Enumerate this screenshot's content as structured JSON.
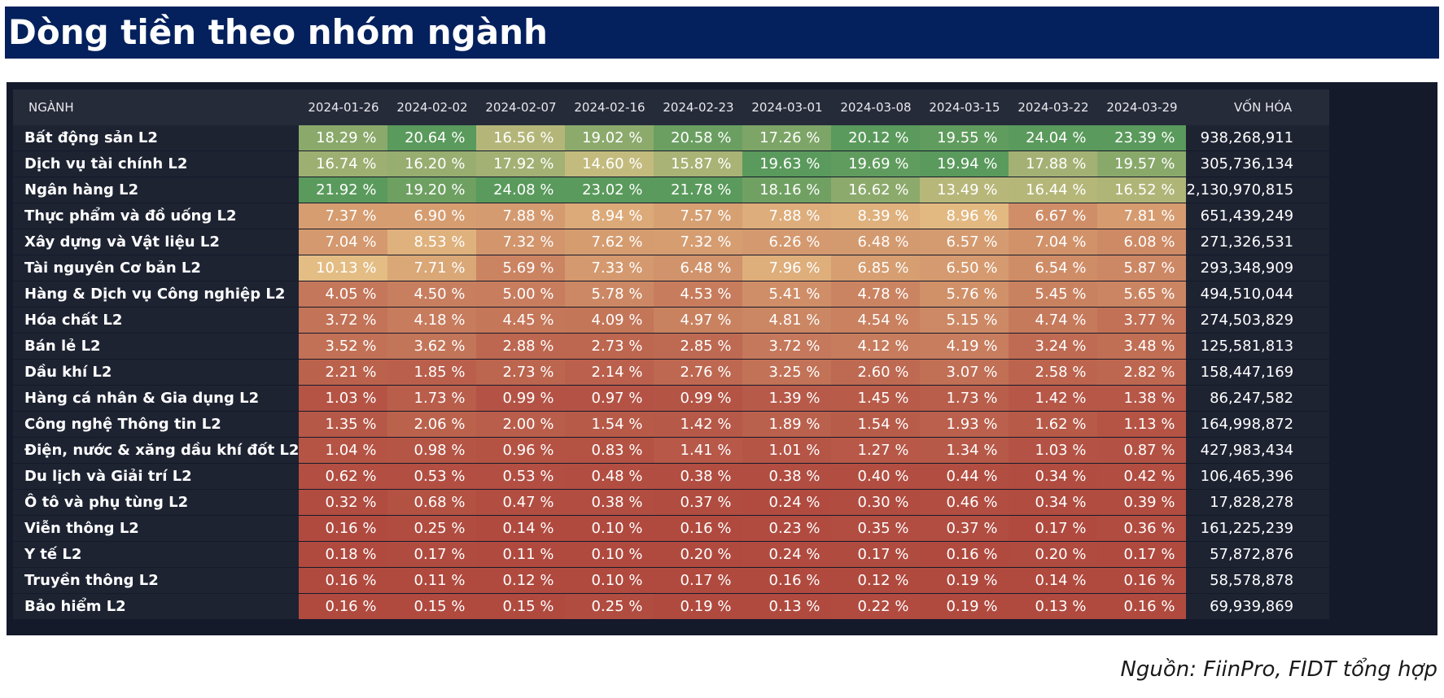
{
  "title": "Dòng tiền theo nhóm ngành",
  "source": "Nguồn: FiinPro, FIDT tổng hợp",
  "colors": {
    "title_bg": "#04215d",
    "panel_bg": "#151a2b",
    "heat_low": "#b04a3f",
    "heat_mid": "#e9c78a",
    "heat_high": "#5a9a5c"
  },
  "chart_data": {
    "type": "heatmap",
    "title": "Dòng tiền theo nhóm ngành",
    "sector_header": "NGÀNH",
    "cap_header": "VỐN HÓA",
    "unit_suffix": " %",
    "color_scale": "per-column (red = lowest, green = highest)",
    "dates": [
      "2024-01-26",
      "2024-02-02",
      "2024-02-07",
      "2024-02-16",
      "2024-02-23",
      "2024-03-01",
      "2024-03-08",
      "2024-03-15",
      "2024-03-22",
      "2024-03-29"
    ],
    "rows": [
      {
        "sector": "Bất động sản L2",
        "values": [
          18.29,
          20.64,
          16.56,
          19.02,
          20.58,
          17.26,
          20.12,
          19.55,
          24.04,
          23.39
        ],
        "cap": "938,268,911"
      },
      {
        "sector": "Dịch vụ tài chính L2",
        "values": [
          16.74,
          16.2,
          17.92,
          14.6,
          15.87,
          19.63,
          19.69,
          19.94,
          17.88,
          19.57
        ],
        "cap": "305,736,134"
      },
      {
        "sector": "Ngân hàng L2",
        "values": [
          21.92,
          19.2,
          24.08,
          23.02,
          21.78,
          18.16,
          16.62,
          13.49,
          16.44,
          16.52
        ],
        "cap": "2,130,970,815"
      },
      {
        "sector": "Thực phẩm và đồ uống L2",
        "values": [
          7.37,
          6.9,
          7.88,
          8.94,
          7.57,
          7.88,
          8.39,
          8.96,
          6.67,
          7.81
        ],
        "cap": "651,439,249"
      },
      {
        "sector": "Xây dựng và Vật liệu L2",
        "values": [
          7.04,
          8.53,
          7.32,
          7.62,
          7.32,
          6.26,
          6.48,
          6.57,
          7.04,
          6.08
        ],
        "cap": "271,326,531"
      },
      {
        "sector": "Tài nguyên Cơ bản L2",
        "values": [
          10.13,
          7.71,
          5.69,
          7.33,
          6.48,
          7.96,
          6.85,
          6.5,
          6.54,
          5.87
        ],
        "cap": "293,348,909"
      },
      {
        "sector": "Hàng & Dịch vụ Công nghiệp L2",
        "values": [
          4.05,
          4.5,
          5.0,
          5.78,
          4.53,
          5.41,
          4.78,
          5.76,
          5.45,
          5.65
        ],
        "cap": "494,510,044"
      },
      {
        "sector": "Hóa chất L2",
        "values": [
          3.72,
          4.18,
          4.45,
          4.09,
          4.97,
          4.81,
          4.54,
          5.15,
          4.74,
          3.77
        ],
        "cap": "274,503,829"
      },
      {
        "sector": "Bán lẻ L2",
        "values": [
          3.52,
          3.62,
          2.88,
          2.73,
          2.85,
          3.72,
          4.12,
          4.19,
          3.24,
          3.48
        ],
        "cap": "125,581,813"
      },
      {
        "sector": "Dầu khí L2",
        "values": [
          2.21,
          1.85,
          2.73,
          2.14,
          2.76,
          3.25,
          2.6,
          3.07,
          2.58,
          2.82
        ],
        "cap": "158,447,169"
      },
      {
        "sector": "Hàng cá nhân & Gia dụng L2",
        "values": [
          1.03,
          1.73,
          0.99,
          0.97,
          0.99,
          1.39,
          1.45,
          1.73,
          1.42,
          1.38
        ],
        "cap": "86,247,582"
      },
      {
        "sector": "Công nghệ Thông tin L2",
        "values": [
          1.35,
          2.06,
          2.0,
          1.54,
          1.42,
          1.89,
          1.54,
          1.93,
          1.62,
          1.13
        ],
        "cap": "164,998,872"
      },
      {
        "sector": "Điện, nước & xăng dầu khí đốt L2",
        "values": [
          1.04,
          0.98,
          0.96,
          0.83,
          1.41,
          1.01,
          1.27,
          1.34,
          1.03,
          0.87
        ],
        "cap": "427,983,434"
      },
      {
        "sector": "Du lịch và Giải trí L2",
        "values": [
          0.62,
          0.53,
          0.53,
          0.48,
          0.38,
          0.38,
          0.4,
          0.44,
          0.34,
          0.42
        ],
        "cap": "106,465,396"
      },
      {
        "sector": "Ô tô và phụ tùng L2",
        "values": [
          0.32,
          0.68,
          0.47,
          0.38,
          0.37,
          0.24,
          0.3,
          0.46,
          0.34,
          0.39
        ],
        "cap": "17,828,278"
      },
      {
        "sector": "Viễn thông L2",
        "values": [
          0.16,
          0.25,
          0.14,
          0.1,
          0.16,
          0.23,
          0.35,
          0.37,
          0.17,
          0.36
        ],
        "cap": "161,225,239"
      },
      {
        "sector": "Y tế L2",
        "values": [
          0.18,
          0.17,
          0.11,
          0.1,
          0.2,
          0.24,
          0.17,
          0.16,
          0.2,
          0.17
        ],
        "cap": "57,872,876"
      },
      {
        "sector": "Truyền thông L2",
        "values": [
          0.16,
          0.11,
          0.12,
          0.1,
          0.17,
          0.16,
          0.12,
          0.19,
          0.14,
          0.16
        ],
        "cap": "58,578,878"
      },
      {
        "sector": "Bảo hiểm L2",
        "values": [
          0.16,
          0.15,
          0.15,
          0.25,
          0.19,
          0.13,
          0.22,
          0.19,
          0.13,
          0.16
        ],
        "cap": "69,939,869"
      }
    ]
  }
}
